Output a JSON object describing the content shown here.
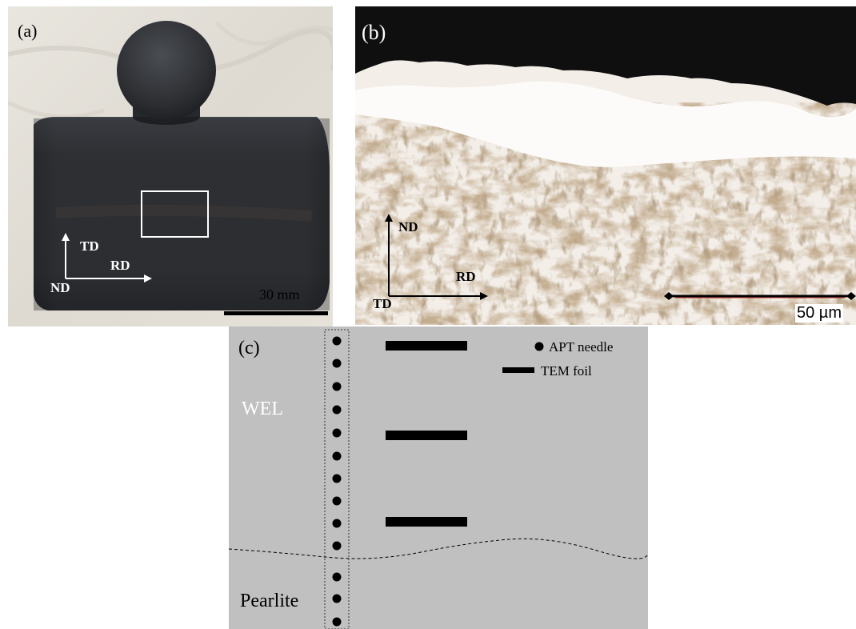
{
  "panel_a": {
    "label": "(a)",
    "axes": {
      "vertical": "TD",
      "horizontal": "RD",
      "origin": "ND"
    },
    "scale_bar": "30 mm"
  },
  "panel_b": {
    "label": "(b)",
    "axes": {
      "vertical": "ND",
      "horizontal": "RD",
      "origin": "TD"
    },
    "scale_bar": "50 µm"
  },
  "panel_c": {
    "label": "(c)",
    "region_top": "WEL",
    "region_bottom": "Pearlite",
    "legend": {
      "dot": "APT needle",
      "bar": "TEM foil"
    }
  },
  "colors": {
    "gray_background": "#c0c0c0",
    "marker": "#000000",
    "label_white": "#ffffff"
  }
}
